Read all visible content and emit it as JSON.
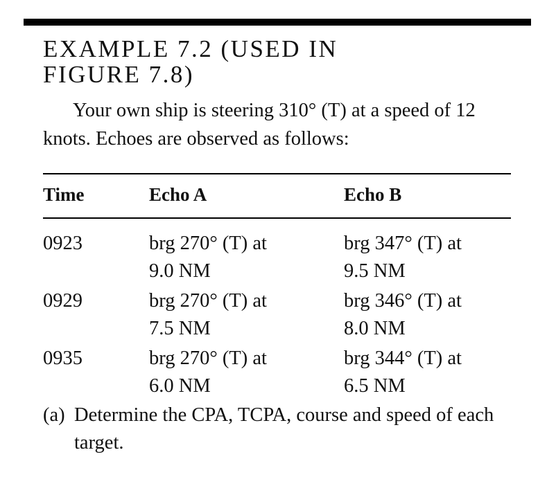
{
  "heading": {
    "line1": "EXAMPLE 7.2 (USED IN",
    "line2": "FIGURE 7.8)"
  },
  "intro": "Your own ship is steering 310° (T) at a speed of 12 knots. Echoes are observed as follows:",
  "table": {
    "headers": {
      "time": "Time",
      "echo_a": "Echo A",
      "echo_b": "Echo B"
    },
    "rows": [
      {
        "time": "0923",
        "a_line1": "brg 270° (T) at",
        "a_line2": "9.0 NM",
        "b_line1": "brg 347° (T) at",
        "b_line2": "9.5 NM"
      },
      {
        "time": "0929",
        "a_line1": "brg 270° (T) at",
        "a_line2": "7.5 NM",
        "b_line1": "brg 346° (T) at",
        "b_line2": "8.0 NM"
      },
      {
        "time": "0935",
        "a_line1": "brg 270° (T) at",
        "a_line2": "6.0 NM",
        "b_line1": "brg 344° (T) at",
        "b_line2": "6.5 NM"
      }
    ]
  },
  "note": {
    "marker": "(a)",
    "text": "Determine the CPA, TCPA, course and speed of each target."
  }
}
